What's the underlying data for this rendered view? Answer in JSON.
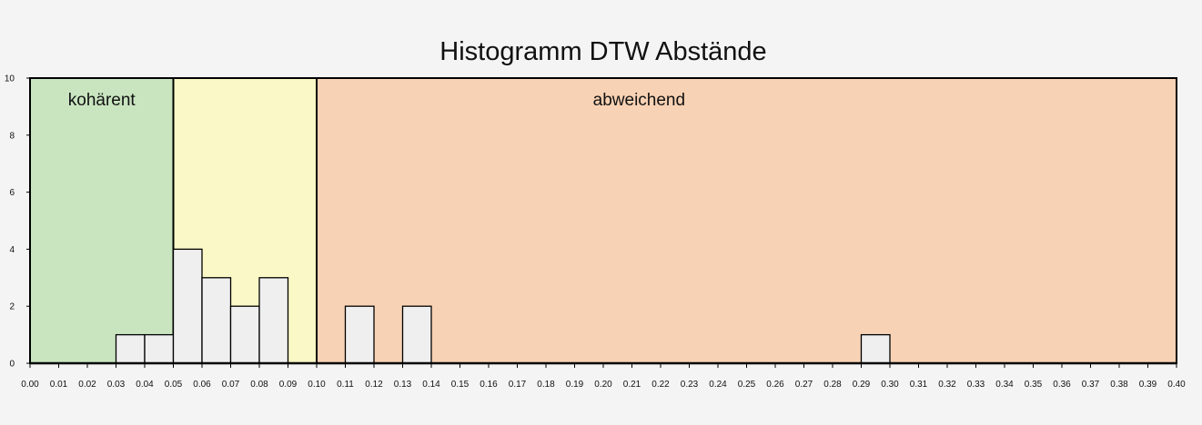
{
  "chart_data": {
    "type": "bar",
    "title": "Histogramm DTW Abstände",
    "xlabel": "",
    "ylabel": "",
    "xlim": [
      0,
      0.4
    ],
    "ylim": [
      0,
      10
    ],
    "bin_width": 0.01,
    "x_ticks": [
      "0.00",
      "0.01",
      "0.02",
      "0.03",
      "0.04",
      "0.05",
      "0.06",
      "0.07",
      "0.08",
      "0.09",
      "0.10",
      "0.11",
      "0.12",
      "0.13",
      "0.14",
      "0.15",
      "0.16",
      "0.17",
      "0.18",
      "0.19",
      "0.20",
      "0.21",
      "0.22",
      "0.23",
      "0.24",
      "0.25",
      "0.26",
      "0.27",
      "0.28",
      "0.29",
      "0.30",
      "0.31",
      "0.32",
      "0.33",
      "0.34",
      "0.35",
      "0.36",
      "0.37",
      "0.38",
      "0.39",
      "0.40"
    ],
    "y_ticks": [
      "0",
      "2",
      "4",
      "6",
      "8",
      "10"
    ],
    "bins": [
      {
        "start": 0.03,
        "end": 0.04,
        "count": 1
      },
      {
        "start": 0.04,
        "end": 0.05,
        "count": 1
      },
      {
        "start": 0.05,
        "end": 0.06,
        "count": 4
      },
      {
        "start": 0.06,
        "end": 0.07,
        "count": 3
      },
      {
        "start": 0.07,
        "end": 0.08,
        "count": 2
      },
      {
        "start": 0.08,
        "end": 0.09,
        "count": 3
      },
      {
        "start": 0.11,
        "end": 0.12,
        "count": 2
      },
      {
        "start": 0.13,
        "end": 0.14,
        "count": 2
      },
      {
        "start": 0.29,
        "end": 0.3,
        "count": 1
      }
    ],
    "regions": [
      {
        "label": "kohärent",
        "from": 0.0,
        "to": 0.05,
        "color": "#c9e5c0"
      },
      {
        "label": "",
        "from": 0.05,
        "to": 0.1,
        "color": "#f9f8c6"
      },
      {
        "label": "abweichend",
        "from": 0.1,
        "to": 0.4,
        "color": "#f8d2b4"
      }
    ],
    "bar_color": "#efefef",
    "grid": false
  }
}
